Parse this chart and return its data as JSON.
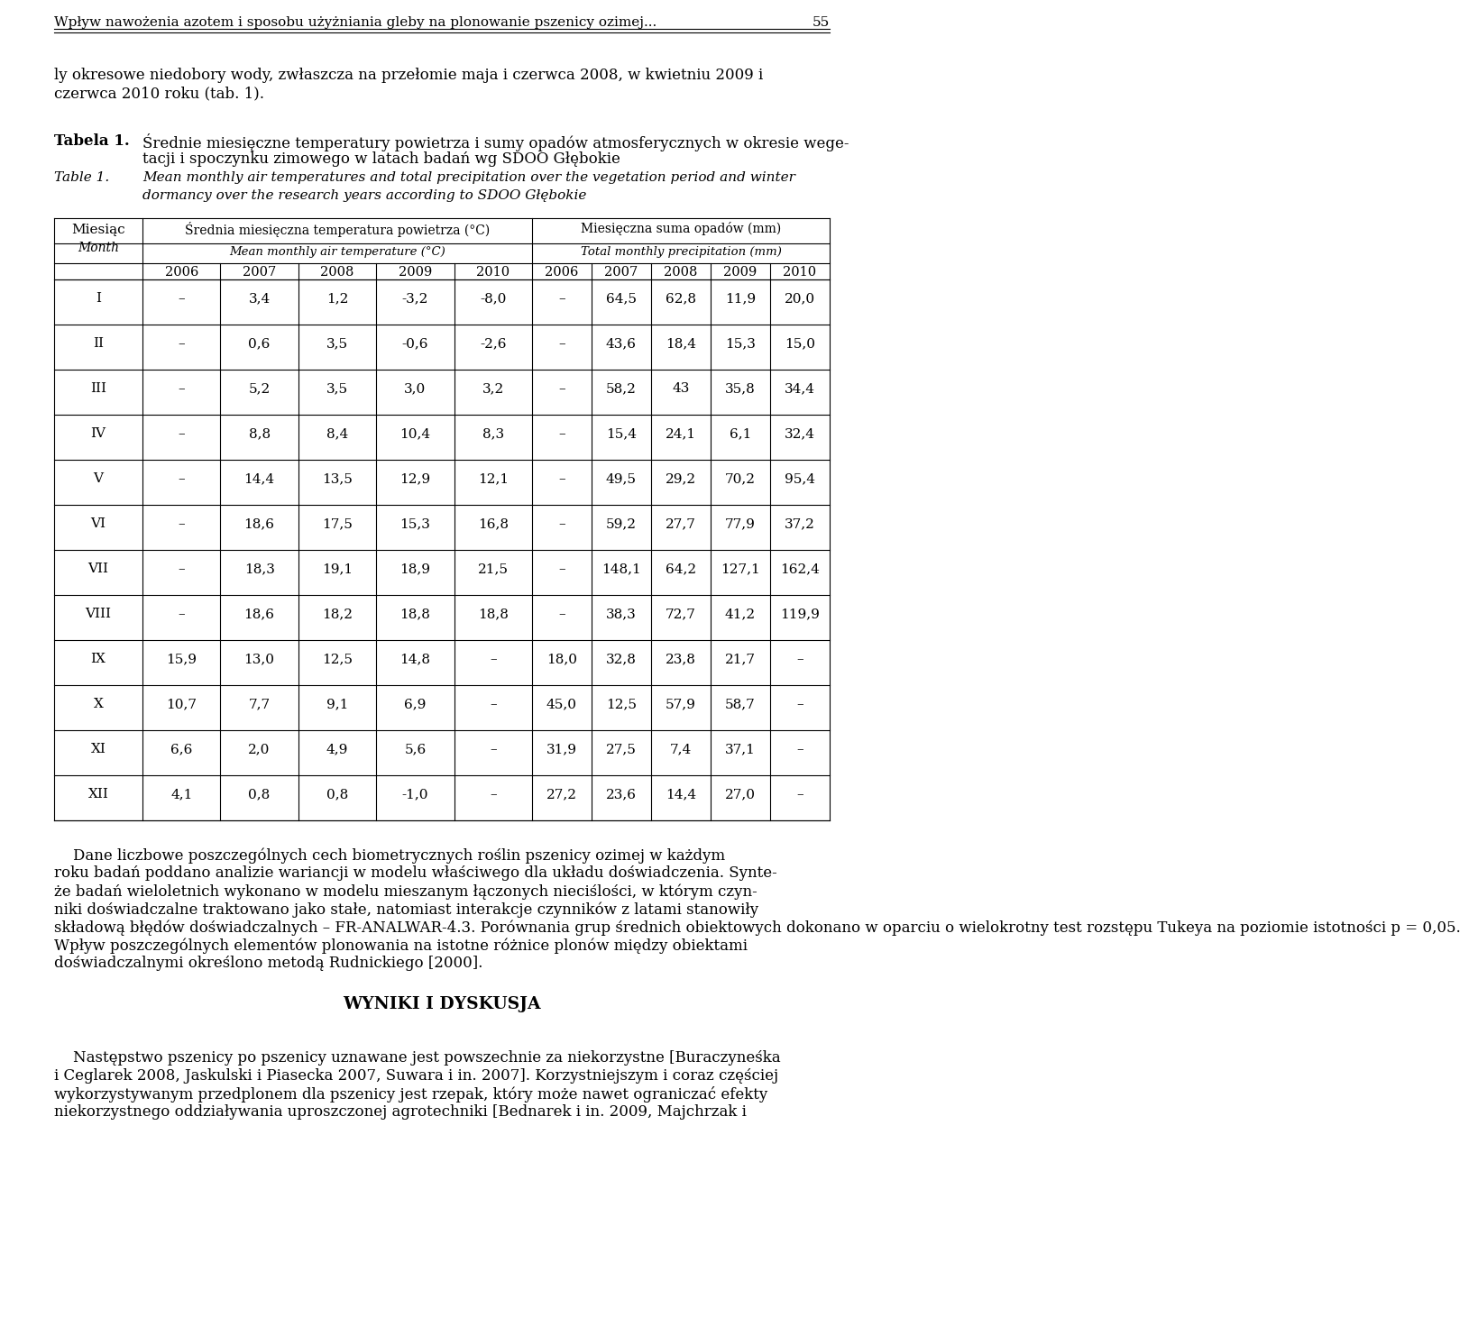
{
  "page_header": "Wpływ nawożenia azotem i sposobu użyżniania gleby na plonowanie pszenicy ozimej...",
  "page_number": "55",
  "intro_line1": "ly okresowe niedobory wody, zwłaszcza na przełomie maja i czerwca 2008, w kwietniu 2009 i",
  "intro_line2": "czerwca 2010 roku (tab. 1).",
  "table_label_pl": "Tabela 1.",
  "table_title_pl_1": "Średnie miesięczne temperatury powietrza i sumy opadów atmosferycznych w okresie wege-",
  "table_title_pl_2": "tacji i spoczynku zimowego w latach badań wg SDOO Głębokie",
  "table_label_en": "Table 1.",
  "table_title_en_1": "Mean monthly air temperatures and total precipitation over the vegetation period and winter",
  "table_title_en_2": "dormancy over the research years according to SDOO Głębokie",
  "col_header_temp_pl": "Średnia miesięczna temperatura powietrza (°C)",
  "col_header_temp_en": "Mean monthly air temperature (°C)",
  "col_header_precip_pl": "Miesięczna suma opadów (mm)",
  "col_header_precip_en": "Total monthly precipitation (mm)",
  "row_header_pl": "Miesiąc",
  "row_header_en": "Month",
  "years": [
    "2006",
    "2007",
    "2008",
    "2009",
    "2010"
  ],
  "months": [
    "I",
    "II",
    "III",
    "IV",
    "V",
    "VI",
    "VII",
    "VIII",
    "IX",
    "X",
    "XI",
    "XII"
  ],
  "temp_data": [
    [
      "–",
      "3,4",
      "1,2",
      "-3,2",
      "-8,0"
    ],
    [
      "–",
      "0,6",
      "3,5",
      "-0,6",
      "-2,6"
    ],
    [
      "–",
      "5,2",
      "3,5",
      "3,0",
      "3,2"
    ],
    [
      "–",
      "8,8",
      "8,4",
      "10,4",
      "8,3"
    ],
    [
      "–",
      "14,4",
      "13,5",
      "12,9",
      "12,1"
    ],
    [
      "–",
      "18,6",
      "17,5",
      "15,3",
      "16,8"
    ],
    [
      "–",
      "18,3",
      "19,1",
      "18,9",
      "21,5"
    ],
    [
      "–",
      "18,6",
      "18,2",
      "18,8",
      "18,8"
    ],
    [
      "15,9",
      "13,0",
      "12,5",
      "14,8",
      "–"
    ],
    [
      "10,7",
      "7,7",
      "9,1",
      "6,9",
      "–"
    ],
    [
      "6,6",
      "2,0",
      "4,9",
      "5,6",
      "–"
    ],
    [
      "4,1",
      "0,8",
      "0,8",
      "-1,0",
      "–"
    ]
  ],
  "precip_data": [
    [
      "–",
      "64,5",
      "62,8",
      "11,9",
      "20,0"
    ],
    [
      "–",
      "43,6",
      "18,4",
      "15,3",
      "15,0"
    ],
    [
      "–",
      "58,2",
      "43",
      "35,8",
      "34,4"
    ],
    [
      "–",
      "15,4",
      "24,1",
      "6,1",
      "32,4"
    ],
    [
      "–",
      "49,5",
      "29,2",
      "70,2",
      "95,4"
    ],
    [
      "–",
      "59,2",
      "27,7",
      "77,9",
      "37,2"
    ],
    [
      "–",
      "148,1",
      "64,2",
      "127,1",
      "162,4"
    ],
    [
      "–",
      "38,3",
      "72,7",
      "41,2",
      "119,9"
    ],
    [
      "18,0",
      "32,8",
      "23,8",
      "21,7",
      "–"
    ],
    [
      "45,0",
      "12,5",
      "57,9",
      "58,7",
      "–"
    ],
    [
      "31,9",
      "27,5",
      "7,4",
      "37,1",
      "–"
    ],
    [
      "27,2",
      "23,6",
      "14,4",
      "27,0",
      "–"
    ]
  ],
  "body_lines": [
    "    Dane liczbowe poszczególnych cech biometrycznych roślin pszenicy ozimej w każdym",
    "roku badań poddano analizie wariancji w modelu właściwego dla układu doświadczenia. Synte-",
    "że badań wieloletnich wykonano w modelu mieszanym łączonych nieciślości, w którym czyn-",
    "niki doświadczalne traktowano jako stałe, natomiast interakcje czynników z latami stanowiły",
    "składową błędów doświadczalnych – FR-ANALWAR-4.3. Porównania grup średnich obiektowych dokonano w oparciu o wielokrotny test rozstępu Tukeya na poziomie istotności p = 0,05.",
    "Wpływ poszczególnych elementów plonowania na istotne różnice plonów między obiektami",
    "doświadczalnymi określono metodą Rudnickiego [2000]."
  ],
  "section_title": "WYNIKI I DYSKUSJA",
  "footer_lines": [
    "    Następstwo pszenicy po pszenicy uznawane jest powszechnie za niekorzystne [Buraczyneśka",
    "i Ceglarek 2008, Jaskulski i Piasecka 2007, Suwara i in. 2007]. Korzystniejszym i coraz częściej",
    "wykorzystywanym przedplonem dla pszenicy jest rzepak, który może nawet ograniczać efekty",
    "niekorzystnego oddziaływania uproszczonej agrotechniki [Bednarek i in. 2009, Majchrzak i"
  ],
  "bg_color": "#ffffff",
  "text_color": "#000000",
  "line_color": "#000000"
}
